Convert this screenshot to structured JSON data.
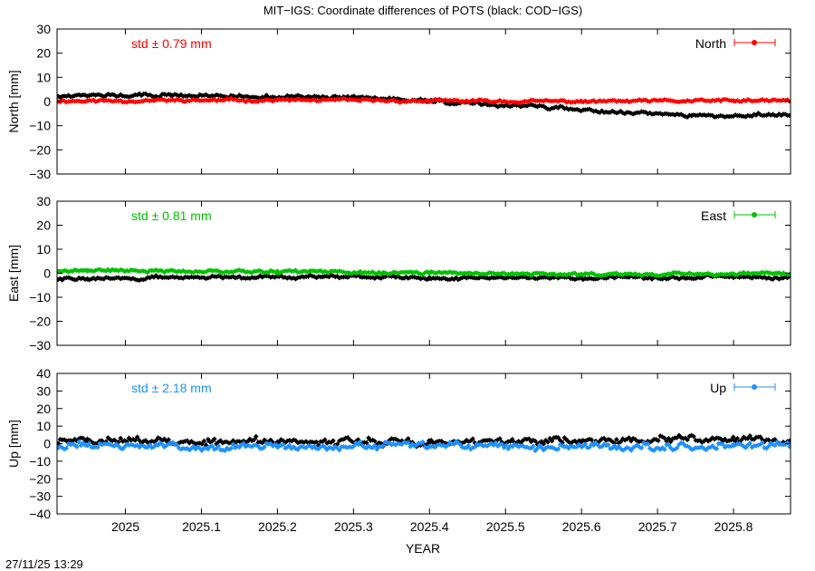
{
  "title": "MIT−IGS: Coordinate differences of POTS (black: COD−IGS)",
  "xlabel": "YEAR",
  "timestamp": "27/11/25 13:29",
  "colors": {
    "comparison": "#000000"
  },
  "chart_data": [
    {
      "type": "scatter",
      "name": "north",
      "ylabel": "North [mm]",
      "legend": "North",
      "legend_position": "top-right",
      "std_text": "std ± 0.79 mm",
      "color": "#ff0000",
      "xlim": [
        2024.91,
        2025.875
      ],
      "ylim": [
        -30,
        30
      ],
      "yticks": [
        -30,
        -20,
        -10,
        0,
        10,
        20,
        30
      ],
      "yticklabels": [
        "−30",
        "−20",
        "−10",
        "0",
        "10",
        "20",
        "30"
      ],
      "grid": false,
      "series": [
        {
          "name": "",
          "color": "#ff0000",
          "mean": 0.4,
          "std": 0.79,
          "seed": 11,
          "x": [
            2024.95,
            2025.2,
            2025.4,
            2025.6,
            2025.8
          ],
          "y": [
            0.3,
            0.6,
            0.2,
            0.0,
            0.3
          ]
        },
        {
          "name": "",
          "color": "#000000",
          "mean": 0.5,
          "std": 1.0,
          "seed": 12,
          "x": [
            2025.06,
            2025.32,
            2025.745
          ],
          "y": [
            2.5,
            1.5,
            -5.8
          ]
        }
      ]
    },
    {
      "type": "scatter",
      "name": "east",
      "ylabel": "East [mm]",
      "legend": "East",
      "legend_position": "top-right",
      "std_text": "std ± 0.81 mm",
      "color": "#00c000",
      "xlim": [
        2024.91,
        2025.875
      ],
      "ylim": [
        -30,
        30
      ],
      "yticks": [
        -30,
        -20,
        -10,
        0,
        10,
        20,
        30
      ],
      "yticklabels": [
        "−30",
        "−20",
        "−10",
        "0",
        "10",
        "20",
        "30"
      ],
      "grid": false,
      "series": [
        {
          "name": "",
          "color": "#00c000",
          "mean": -0.1,
          "std": 0.81,
          "seed": 21,
          "x": [
            2024.95,
            2025.2,
            2025.4,
            2025.6,
            2025.8
          ],
          "y": [
            1.2,
            0.8,
            0.0,
            -0.4,
            -0.2
          ]
        },
        {
          "name": "",
          "color": "#000000",
          "mean": -2.0,
          "std": 0.9,
          "seed": 22,
          "x": [
            2024.95,
            2025.2,
            2025.4,
            2025.6,
            2025.8
          ],
          "y": [
            -2.3,
            -1.2,
            -1.8,
            -2.0,
            -1.8
          ]
        }
      ]
    },
    {
      "type": "scatter",
      "name": "up",
      "ylabel": "Up [mm]",
      "legend": "Up",
      "legend_position": "top-right",
      "std_text": "std ± 2.18 mm",
      "color": "#1e90ff",
      "xlim": [
        2024.91,
        2025.875
      ],
      "ylim": [
        -40,
        40
      ],
      "yticks": [
        -40,
        -30,
        -20,
        -10,
        0,
        10,
        20,
        30,
        40
      ],
      "yticklabels": [
        "−40",
        "−30",
        "−20",
        "−10",
        "0",
        "10",
        "20",
        "30",
        "40"
      ],
      "grid": false,
      "series": [
        {
          "name": "",
          "color": "#1e90ff",
          "mean": -1.5,
          "std": 2.18,
          "seed": 31,
          "x": [
            2024.95,
            2025.2,
            2025.4,
            2025.6,
            2025.8
          ],
          "y": [
            -1.0,
            -2.0,
            -1.5,
            -1.8,
            -1.0
          ]
        },
        {
          "name": "",
          "color": "#000000",
          "mean": 1.0,
          "std": 2.3,
          "seed": 32,
          "x": [
            2024.95,
            2025.2,
            2025.4,
            2025.6,
            2025.8
          ],
          "y": [
            1.5,
            1.0,
            0.5,
            1.5,
            2.5
          ]
        }
      ]
    }
  ],
  "xticks": [
    2025,
    2025.1,
    2025.2,
    2025.3,
    2025.4,
    2025.5,
    2025.6,
    2025.7,
    2025.8
  ],
  "xticklabels": [
    "2025",
    "2025.1",
    "2025.2",
    "2025.3",
    "2025.4",
    "2025.5",
    "2025.6",
    "2025.7",
    "2025.8"
  ]
}
